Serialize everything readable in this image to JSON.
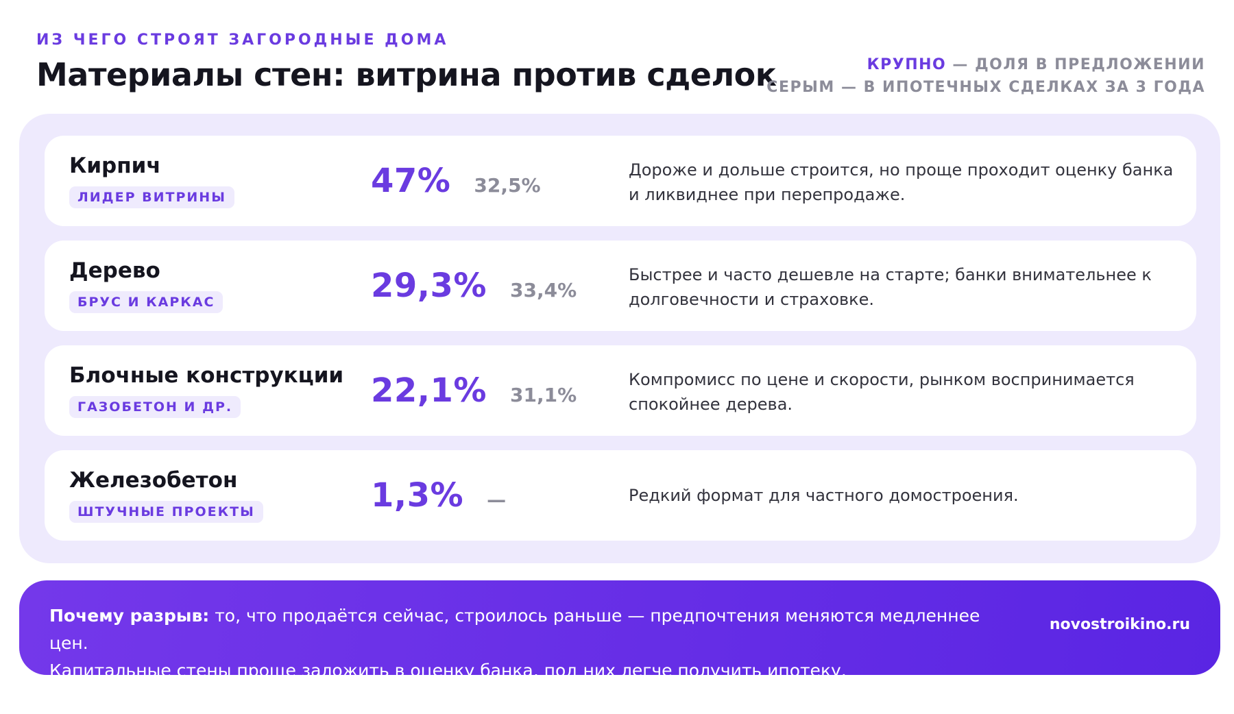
{
  "header": {
    "eyebrow": "ИЗ ЧЕГО СТРОЯТ ЗАГОРОДНЫЕ ДОМА",
    "title": "Материалы стен: витрина против сделок",
    "legend_accent": "КРУПНО",
    "legend_line1_rest": " — ДОЛЯ В ПРЕДЛОЖЕНИИ",
    "legend_line2": "СЕРЫМ — В ИПОТЕЧНЫХ СДЕЛКАХ ЗА 3 ГОДА"
  },
  "rows": [
    {
      "name": "Кирпич",
      "tag": "ЛИДЕР ВИТРИНЫ",
      "offer_share": "47%",
      "deal_share": "32,5%",
      "note": "Дороже и дольше строится, но проще проходит оценку банка и ликвиднее при перепродаже."
    },
    {
      "name": "Дерево",
      "tag": "БРУС И КАРКАС",
      "offer_share": "29,3%",
      "deal_share": "33,4%",
      "note": "Быстрее и часто дешевле на старте; банки внимательнее к долговечности и страховке."
    },
    {
      "name": "Блочные конструкции",
      "tag": "ГАЗОБЕТОН И ДР.",
      "offer_share": "22,1%",
      "deal_share": "31,1%",
      "note": "Компромисс по цене и скорости, рынком воспринимается спокойнее дерева."
    },
    {
      "name": "Железобетон",
      "tag": "ШТУЧНЫЕ ПРОЕКТЫ",
      "offer_share": "1,3%",
      "deal_share": "—",
      "note": "Редкий формат для частного домостроения."
    }
  ],
  "footer": {
    "lead": "Почему разрыв:",
    "text1": " то, что продаётся сейчас, строилось раньше — предпочтения меняются медленнее цен.",
    "text2": "Капитальные стены проще заложить в оценку банка, под них легче получить ипотеку.",
    "site": "novostroikino.ru"
  },
  "colors": {
    "accent": "#6a3be0",
    "muted": "#8c8c99",
    "panel": "#eeeafd",
    "footer_start": "#7438ea",
    "footer_end": "#5a25e3"
  }
}
